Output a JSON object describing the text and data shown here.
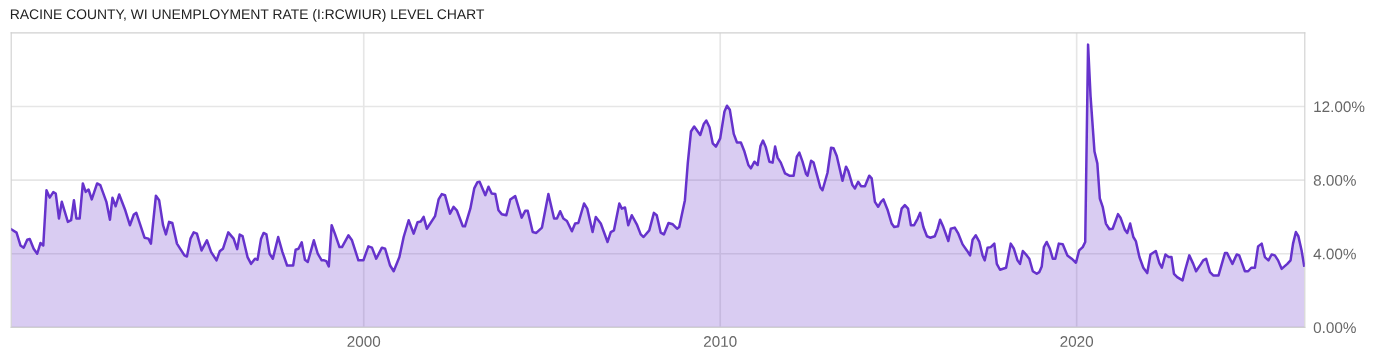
{
  "chart_data": {
    "type": "area",
    "title": "RACINE COUNTY, WI UNEMPLOYMENT RATE (I:RCWIUR) LEVEL CHART",
    "xlim": [
      1990.11,
      2026.4
    ],
    "xticks": [
      2000,
      2010,
      2020
    ],
    "ylim": [
      0,
      16
    ],
    "yticks": [
      {
        "value": 0,
        "label": "0.00%"
      },
      {
        "value": 4,
        "label": "4.00%"
      },
      {
        "value": 8,
        "label": "8.00%"
      },
      {
        "value": 12,
        "label": "12.00%"
      }
    ],
    "grid": true,
    "legend": false,
    "series": [
      {
        "color": "#6633cc",
        "x": [
          1990.11,
          1990.26,
          1990.37,
          1990.46,
          1990.56,
          1990.63,
          1990.74,
          1990.84,
          1990.93,
          1991.01,
          1991.1,
          1991.19,
          1991.29,
          1991.36,
          1991.45,
          1991.53,
          1991.7,
          1991.79,
          1991.87,
          1991.94,
          1992.03,
          1992.12,
          1992.2,
          1992.28,
          1992.37,
          1992.52,
          1992.61,
          1992.78,
          1992.88,
          1992.95,
          1993.04,
          1993.14,
          1993.31,
          1993.44,
          1993.55,
          1993.62,
          1993.85,
          1993.96,
          1994.03,
          1994.17,
          1994.26,
          1994.37,
          1994.45,
          1994.54,
          1994.63,
          1994.76,
          1994.97,
          1995.04,
          1995.14,
          1995.23,
          1995.32,
          1995.45,
          1995.6,
          1995.72,
          1995.87,
          1995.96,
          1996.05,
          1996.2,
          1996.35,
          1996.45,
          1996.52,
          1996.6,
          1996.74,
          1996.84,
          1996.95,
          1997.02,
          1997.12,
          1997.19,
          1997.27,
          1997.36,
          1997.45,
          1997.6,
          1997.72,
          1997.85,
          1998.02,
          1998.09,
          1998.17,
          1998.26,
          1998.35,
          1998.43,
          1998.6,
          1998.71,
          1998.82,
          1998.89,
          1998.95,
          1999.02,
          1999.1,
          1999.19,
          1999.32,
          1999.39,
          1999.57,
          1999.67,
          1999.85,
          1999.99,
          2000.13,
          2000.23,
          2000.35,
          2000.51,
          2000.6,
          2000.74,
          2000.84,
          2001.0,
          2001.12,
          2001.26,
          2001.4,
          2001.51,
          2001.6,
          2001.68,
          2001.77,
          2002.0,
          2002.1,
          2002.19,
          2002.28,
          2002.42,
          2002.52,
          2002.61,
          2002.78,
          2002.84,
          2002.99,
          2003.1,
          2003.19,
          2003.25,
          2003.41,
          2003.5,
          2003.59,
          2003.69,
          2003.78,
          2003.87,
          2004.0,
          2004.11,
          2004.25,
          2004.43,
          2004.53,
          2004.6,
          2004.74,
          2004.84,
          2005.0,
          2005.18,
          2005.34,
          2005.42,
          2005.51,
          2005.6,
          2005.7,
          2005.84,
          2005.93,
          2006.02,
          2006.18,
          2006.27,
          2006.42,
          2006.51,
          2006.65,
          2006.84,
          2006.93,
          2007.02,
          2007.17,
          2007.24,
          2007.33,
          2007.42,
          2007.52,
          2007.66,
          2007.77,
          2007.85,
          2008.01,
          2008.14,
          2008.22,
          2008.33,
          2008.42,
          2008.55,
          2008.67,
          2008.79,
          2008.85,
          2009.01,
          2009.09,
          2009.18,
          2009.27,
          2009.44,
          2009.54,
          2009.61,
          2009.7,
          2009.79,
          2009.88,
          2010.0,
          2010.12,
          2010.19,
          2010.27,
          2010.38,
          2010.47,
          2010.58,
          2010.68,
          2010.79,
          2010.86,
          2010.96,
          2011.05,
          2011.13,
          2011.2,
          2011.28,
          2011.38,
          2011.47,
          2011.54,
          2011.61,
          2011.7,
          2011.82,
          2011.94,
          2012.06,
          2012.15,
          2012.22,
          2012.31,
          2012.41,
          2012.45,
          2012.55,
          2012.62,
          2012.73,
          2012.81,
          2012.87,
          2013.01,
          2013.11,
          2013.18,
          2013.27,
          2013.43,
          2013.53,
          2013.59,
          2013.71,
          2013.78,
          2013.87,
          2013.95,
          2014.06,
          2014.18,
          2014.25,
          2014.34,
          2014.43,
          2014.51,
          2014.58,
          2014.7,
          2014.81,
          2014.88,
          2014.99,
          2015.09,
          2015.18,
          2015.27,
          2015.35,
          2015.44,
          2015.54,
          2015.61,
          2015.7,
          2015.8,
          2015.89,
          2016.02,
          2016.1,
          2016.17,
          2016.26,
          2016.4,
          2016.47,
          2016.58,
          2016.68,
          2016.8,
          2016.92,
          2017.01,
          2017.08,
          2017.17,
          2017.27,
          2017.36,
          2017.42,
          2017.5,
          2017.59,
          2017.69,
          2017.76,
          2017.85,
          2018.02,
          2018.15,
          2018.24,
          2018.34,
          2018.41,
          2018.49,
          2018.6,
          2018.67,
          2018.77,
          2018.88,
          2018.95,
          2019.02,
          2019.08,
          2019.16,
          2019.25,
          2019.33,
          2019.4,
          2019.5,
          2019.61,
          2019.74,
          2019.86,
          2019.98,
          2020.07,
          2020.17,
          2020.24,
          2020.32,
          2020.39,
          2020.5,
          2020.58,
          2020.65,
          2020.73,
          2020.82,
          2020.92,
          2021.01,
          2021.16,
          2021.23,
          2021.35,
          2021.42,
          2021.5,
          2021.59,
          2021.66,
          2021.76,
          2021.87,
          2021.98,
          2022.07,
          2022.22,
          2022.32,
          2022.39,
          2022.49,
          2022.58,
          2022.66,
          2022.73,
          2022.82,
          2022.97,
          2023.04,
          2023.16,
          2023.27,
          2023.35,
          2023.48,
          2023.55,
          2023.63,
          2023.74,
          2023.83,
          2023.98,
          2024.16,
          2024.22,
          2024.37,
          2024.49,
          2024.56,
          2024.72,
          2024.81,
          2024.9,
          2025.0,
          2025.09,
          2025.19,
          2025.28,
          2025.38,
          2025.47,
          2025.56,
          2025.65,
          2025.75,
          2025.91,
          2026.0,
          2026.07,
          2026.15,
          2026.22,
          2026.31,
          2026.38
        ],
        "values": [
          5.33,
          5.15,
          4.45,
          4.33,
          4.76,
          4.8,
          4.27,
          4.0,
          4.58,
          4.45,
          7.45,
          7.05,
          7.35,
          7.27,
          5.91,
          6.82,
          5.73,
          5.82,
          6.91,
          5.91,
          5.91,
          7.82,
          7.36,
          7.49,
          6.95,
          7.82,
          7.73,
          6.82,
          5.85,
          7.04,
          6.58,
          7.22,
          6.36,
          5.55,
          6.13,
          6.22,
          4.87,
          4.82,
          4.55,
          7.15,
          6.91,
          5.55,
          5.05,
          5.73,
          5.67,
          4.55,
          3.91,
          3.85,
          4.82,
          5.16,
          5.09,
          4.18,
          4.73,
          4.09,
          3.64,
          4.13,
          4.27,
          5.16,
          4.82,
          4.25,
          5.04,
          4.96,
          3.82,
          3.45,
          3.73,
          3.67,
          4.82,
          5.13,
          5.05,
          4.0,
          3.73,
          4.91,
          4.09,
          3.36,
          3.36,
          4.22,
          4.27,
          4.62,
          3.67,
          3.55,
          4.73,
          4.0,
          3.64,
          3.64,
          3.6,
          3.31,
          5.55,
          5.09,
          4.36,
          4.36,
          5.0,
          4.73,
          3.64,
          3.64,
          4.4,
          4.33,
          3.73,
          4.33,
          4.27,
          3.36,
          3.05,
          3.82,
          4.91,
          5.82,
          5.09,
          5.71,
          5.75,
          6.0,
          5.36,
          6.04,
          6.95,
          7.24,
          7.18,
          6.18,
          6.55,
          6.36,
          5.49,
          5.49,
          6.45,
          7.55,
          7.89,
          7.91,
          7.18,
          7.64,
          7.27,
          7.24,
          6.36,
          6.15,
          6.09,
          6.95,
          7.13,
          5.96,
          6.33,
          6.33,
          5.18,
          5.13,
          5.42,
          7.24,
          5.91,
          5.91,
          6.31,
          5.91,
          5.78,
          5.22,
          5.64,
          5.67,
          6.73,
          6.45,
          5.18,
          6.0,
          5.64,
          4.64,
          5.18,
          5.27,
          6.73,
          6.45,
          6.51,
          5.55,
          6.09,
          5.6,
          5.05,
          4.91,
          5.27,
          6.22,
          6.09,
          5.15,
          5.05,
          5.67,
          5.6,
          5.36,
          5.45,
          6.91,
          8.91,
          10.64,
          10.91,
          10.45,
          11.05,
          11.24,
          10.87,
          10.0,
          9.82,
          10.27,
          11.73,
          12.04,
          11.82,
          10.51,
          10.04,
          10.04,
          9.55,
          8.82,
          8.64,
          9.0,
          8.82,
          9.85,
          10.15,
          9.78,
          9.0,
          8.95,
          9.82,
          9.22,
          8.95,
          8.36,
          8.24,
          8.24,
          9.27,
          9.49,
          9.0,
          8.33,
          8.24,
          9.05,
          8.95,
          8.18,
          7.6,
          7.45,
          8.4,
          9.76,
          9.73,
          9.31,
          7.96,
          8.73,
          8.51,
          7.73,
          7.55,
          7.91,
          7.67,
          7.67,
          8.24,
          8.09,
          6.82,
          6.55,
          6.82,
          6.95,
          6.36,
          5.64,
          5.45,
          5.49,
          6.45,
          6.64,
          6.45,
          5.55,
          5.55,
          5.91,
          6.22,
          5.45,
          4.95,
          4.87,
          4.95,
          5.36,
          5.85,
          5.45,
          4.69,
          5.36,
          5.42,
          5.09,
          4.51,
          4.18,
          3.91,
          4.76,
          5.0,
          4.64,
          3.91,
          3.64,
          4.33,
          4.36,
          4.55,
          3.45,
          3.13,
          3.24,
          4.55,
          4.27,
          3.64,
          3.45,
          4.15,
          3.91,
          3.73,
          3.05,
          2.91,
          3.0,
          3.31,
          4.36,
          4.64,
          4.27,
          3.73,
          3.73,
          4.55,
          4.51,
          3.91,
          3.73,
          3.51,
          4.18,
          4.36,
          4.64,
          15.36,
          12.55,
          9.55,
          8.91,
          7.0,
          6.55,
          5.64,
          5.33,
          5.36,
          6.15,
          5.96,
          5.31,
          5.13,
          5.64,
          4.91,
          4.69,
          3.82,
          3.24,
          2.95,
          3.96,
          4.15,
          3.49,
          3.24,
          3.96,
          3.82,
          3.82,
          2.91,
          2.73,
          2.55,
          3.09,
          3.91,
          3.45,
          3.05,
          3.42,
          3.64,
          3.73,
          3.0,
          2.82,
          2.82,
          4.04,
          4.04,
          3.45,
          3.96,
          3.91,
          3.05,
          3.05,
          3.24,
          3.24,
          4.4,
          4.55,
          3.82,
          3.64,
          3.96,
          3.91,
          3.64,
          3.18,
          3.45,
          3.64,
          4.55,
          5.18,
          4.95,
          4.18,
          3.36
        ]
      }
    ]
  }
}
